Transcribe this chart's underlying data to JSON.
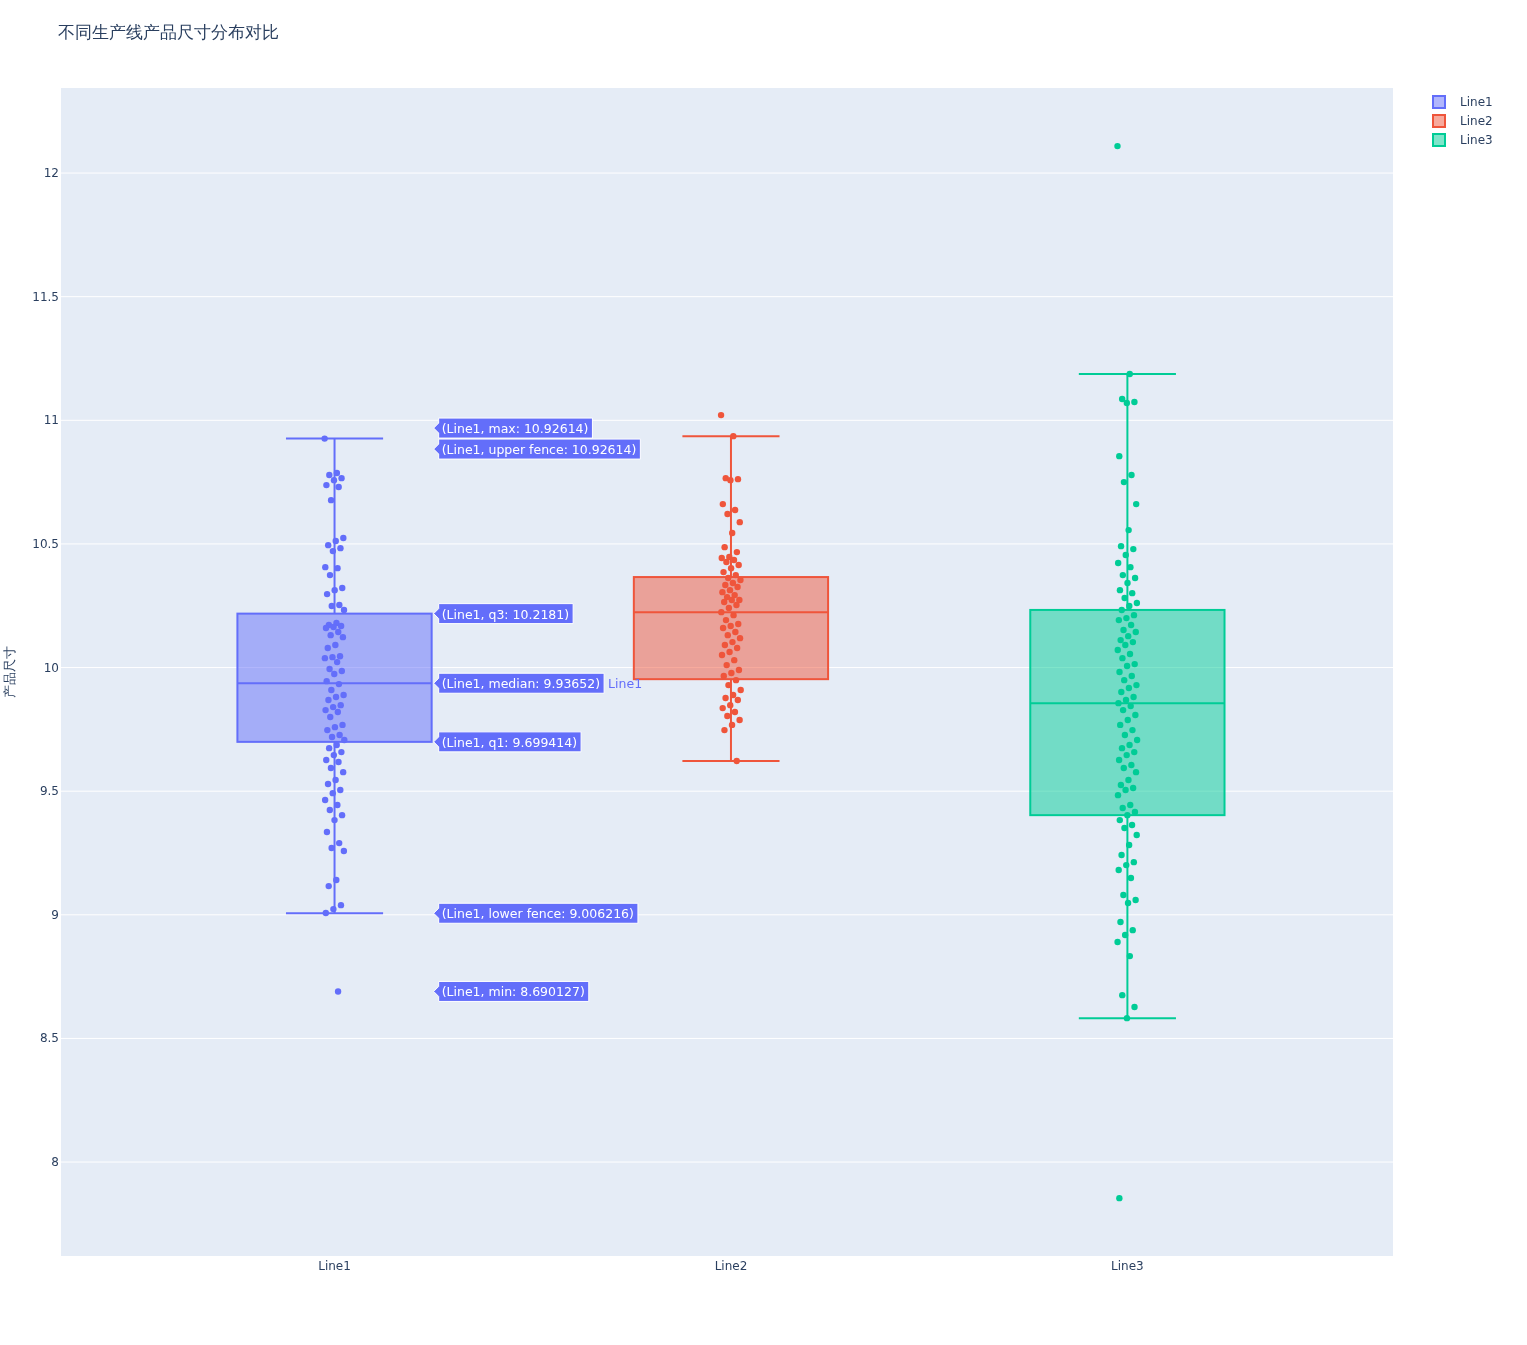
{
  "chart_data": {
    "type": "box",
    "title": "不同生产线产品尺寸分布对比",
    "ylabel": "产品尺寸",
    "categories": [
      "Line1",
      "Line2",
      "Line3"
    ],
    "ylim": [
      7.62,
      12.344
    ],
    "yticks": [
      8,
      8.5,
      9,
      9.5,
      10,
      10.5,
      11,
      11.5,
      12
    ],
    "grid": "y",
    "legend": "top right",
    "marker": "circle",
    "series": [
      {
        "name": "Line1",
        "type": "box",
        "color": "#636efa",
        "x": [
          "Line1"
        ],
        "boxes": [
          {
            "low": 9.006216,
            "q1": 9.699414,
            "median": 9.93652,
            "q3": 10.2181,
            "high": 10.92614
          }
        ]
      },
      {
        "name": "Line2",
        "type": "box",
        "color": "#ef553b",
        "x": [
          "Line2"
        ],
        "boxes": [
          {
            "low": 9.622,
            "q1": 9.953,
            "median": 10.224,
            "q3": 10.366,
            "high": 10.936
          }
        ]
      },
      {
        "name": "Line3",
        "type": "box",
        "color": "#00cc96",
        "x": [
          "Line3"
        ],
        "boxes": [
          {
            "low": 8.582,
            "q1": 9.403,
            "median": 9.856,
            "q3": 10.233,
            "high": 11.187
          }
        ]
      },
      {
        "type": "scatter",
        "color": "#636efa",
        "x": [
          "Line1",
          "Line1",
          "Line1",
          "Line1",
          "Line1",
          "Line1",
          "Line1",
          "Line1",
          "Line1",
          "Line1",
          "Line1",
          "Line1",
          "Line1",
          "Line1",
          "Line1",
          "Line1",
          "Line1",
          "Line1",
          "Line1",
          "Line1",
          "Line1",
          "Line1",
          "Line1",
          "Line1",
          "Line1",
          "Line1",
          "Line1",
          "Line1",
          "Line1",
          "Line1",
          "Line1",
          "Line1",
          "Line1",
          "Line1",
          "Line1",
          "Line1",
          "Line1",
          "Line1",
          "Line1",
          "Line1",
          "Line1",
          "Line1",
          "Line1",
          "Line1",
          "Line1",
          "Line1",
          "Line1",
          "Line1",
          "Line1",
          "Line1",
          "Line1",
          "Line1",
          "Line1",
          "Line1",
          "Line1",
          "Line1",
          "Line1",
          "Line1",
          "Line1",
          "Line1",
          "Line1",
          "Line1",
          "Line1",
          "Line1",
          "Line1",
          "Line1",
          "Line1",
          "Line1",
          "Line1",
          "Line1",
          "Line1",
          "Line1",
          "Line1",
          "Line1",
          "Line1",
          "Line1",
          "Line1",
          "Line1",
          "Line1",
          "Line1",
          "Line1",
          "Line1",
          "Line1"
        ],
        "values": [
          10.926,
          10.787,
          10.779,
          10.766,
          10.758,
          10.738,
          10.73,
          10.677,
          10.524,
          10.512,
          10.495,
          10.483,
          10.471,
          10.406,
          10.402,
          10.374,
          10.322,
          10.313,
          10.297,
          10.253,
          10.249,
          10.233,
          10.18,
          10.172,
          10.168,
          10.164,
          10.16,
          10.144,
          10.131,
          10.123,
          10.091,
          10.079,
          10.046,
          10.042,
          10.038,
          10.022,
          9.994,
          9.986,
          9.974,
          9.945,
          9.933,
          9.909,
          9.889,
          9.881,
          9.869,
          9.848,
          9.84,
          9.828,
          9.82,
          9.8,
          9.768,
          9.759,
          9.747,
          9.727,
          9.719,
          9.707,
          9.687,
          9.674,
          9.658,
          9.646,
          9.626,
          9.618,
          9.594,
          9.577,
          9.545,
          9.529,
          9.505,
          9.492,
          9.464,
          9.444,
          9.424,
          9.403,
          9.383,
          9.335,
          9.29,
          9.27,
          9.258,
          9.141,
          9.116,
          9.039,
          9.023,
          9.007,
          8.69
        ]
      },
      {
        "type": "scatter",
        "color": "#ef553b",
        "x": [
          "Line2",
          "Line2",
          "Line2",
          "Line2",
          "Line2",
          "Line2",
          "Line2",
          "Line2",
          "Line2",
          "Line2",
          "Line2",
          "Line2",
          "Line2",
          "Line2",
          "Line2",
          "Line2",
          "Line2",
          "Line2",
          "Line2",
          "Line2",
          "Line2",
          "Line2",
          "Line2",
          "Line2",
          "Line2",
          "Line2",
          "Line2",
          "Line2",
          "Line2",
          "Line2",
          "Line2",
          "Line2",
          "Line2",
          "Line2",
          "Line2",
          "Line2",
          "Line2",
          "Line2",
          "Line2",
          "Line2",
          "Line2",
          "Line2",
          "Line2",
          "Line2",
          "Line2",
          "Line2",
          "Line2",
          "Line2",
          "Line2",
          "Line2",
          "Line2",
          "Line2",
          "Line2",
          "Line2",
          "Line2",
          "Line2",
          "Line2",
          "Line2",
          "Line2",
          "Line2",
          "Line2",
          "Line2",
          "Line2",
          "Line2",
          "Line2",
          "Line2",
          "Line2"
        ],
        "values": [
          11.021,
          10.936,
          10.766,
          10.762,
          10.758,
          10.661,
          10.637,
          10.621,
          10.588,
          10.544,
          10.487,
          10.467,
          10.447,
          10.443,
          10.435,
          10.427,
          10.415,
          10.402,
          10.386,
          10.374,
          10.362,
          10.354,
          10.342,
          10.334,
          10.326,
          10.313,
          10.305,
          10.293,
          10.285,
          10.273,
          10.273,
          10.265,
          10.253,
          10.241,
          10.224,
          10.212,
          10.192,
          10.176,
          10.168,
          10.16,
          10.144,
          10.131,
          10.119,
          10.103,
          10.091,
          10.079,
          10.063,
          10.051,
          10.03,
          10.01,
          9.99,
          9.978,
          9.966,
          9.949,
          9.929,
          9.909,
          9.889,
          9.877,
          9.869,
          9.848,
          9.836,
          9.82,
          9.804,
          9.788,
          9.768,
          9.747,
          9.622
        ]
      },
      {
        "type": "scatter",
        "color": "#00cc96",
        "x": [
          "Line3",
          "Line3",
          "Line3",
          "Line3",
          "Line3",
          "Line3",
          "Line3",
          "Line3",
          "Line3",
          "Line3",
          "Line3",
          "Line3",
          "Line3",
          "Line3",
          "Line3",
          "Line3",
          "Line3",
          "Line3",
          "Line3",
          "Line3",
          "Line3",
          "Line3",
          "Line3",
          "Line3",
          "Line3",
          "Line3",
          "Line3",
          "Line3",
          "Line3",
          "Line3",
          "Line3",
          "Line3",
          "Line3",
          "Line3",
          "Line3",
          "Line3",
          "Line3",
          "Line3",
          "Line3",
          "Line3",
          "Line3",
          "Line3",
          "Line3",
          "Line3",
          "Line3",
          "Line3",
          "Line3",
          "Line3",
          "Line3",
          "Line3",
          "Line3",
          "Line3",
          "Line3",
          "Line3",
          "Line3",
          "Line3",
          "Line3",
          "Line3",
          "Line3",
          "Line3",
          "Line3",
          "Line3",
          "Line3",
          "Line3",
          "Line3",
          "Line3",
          "Line3",
          "Line3",
          "Line3",
          "Line3",
          "Line3",
          "Line3",
          "Line3",
          "Line3",
          "Line3",
          "Line3",
          "Line3",
          "Line3",
          "Line3",
          "Line3",
          "Line3",
          "Line3",
          "Line3",
          "Line3",
          "Line3",
          "Line3",
          "Line3",
          "Line3",
          "Line3",
          "Line3",
          "Line3",
          "Line3",
          "Line3",
          "Line3",
          "Line3"
        ],
        "values": [
          12.109,
          11.187,
          11.086,
          11.074,
          11.07,
          10.855,
          10.779,
          10.75,
          10.661,
          10.556,
          10.491,
          10.479,
          10.455,
          10.423,
          10.406,
          10.374,
          10.362,
          10.342,
          10.313,
          10.301,
          10.281,
          10.261,
          10.249,
          10.233,
          10.212,
          10.2,
          10.192,
          10.172,
          10.152,
          10.144,
          10.127,
          10.111,
          10.103,
          10.091,
          10.071,
          10.055,
          10.038,
          10.014,
          10.006,
          9.982,
          9.966,
          9.949,
          9.929,
          9.917,
          9.901,
          9.881,
          9.869,
          9.856,
          9.844,
          9.828,
          9.808,
          9.788,
          9.768,
          9.747,
          9.727,
          9.707,
          9.687,
          9.674,
          9.658,
          9.646,
          9.626,
          9.606,
          9.594,
          9.577,
          9.545,
          9.525,
          9.513,
          9.505,
          9.484,
          9.444,
          9.432,
          9.416,
          9.403,
          9.383,
          9.363,
          9.351,
          9.323,
          9.282,
          9.242,
          9.213,
          9.201,
          9.181,
          9.149,
          9.08,
          9.06,
          9.048,
          8.971,
          8.938,
          8.918,
          8.89,
          8.833,
          8.675,
          8.627,
          8.582,
          7.854
        ]
      }
    ],
    "annotations": [
      "(Line1, max: 10.92614)",
      "(Line1, upper fence: 10.92614)",
      "(Line1, q3: 10.2181)",
      "(Line1, median: 9.93652)",
      "Line1",
      "(Line1, q1: 9.699414)",
      "(Line1, lower fence: 9.006216)",
      "(Line1, min: 8.690127)"
    ]
  }
}
